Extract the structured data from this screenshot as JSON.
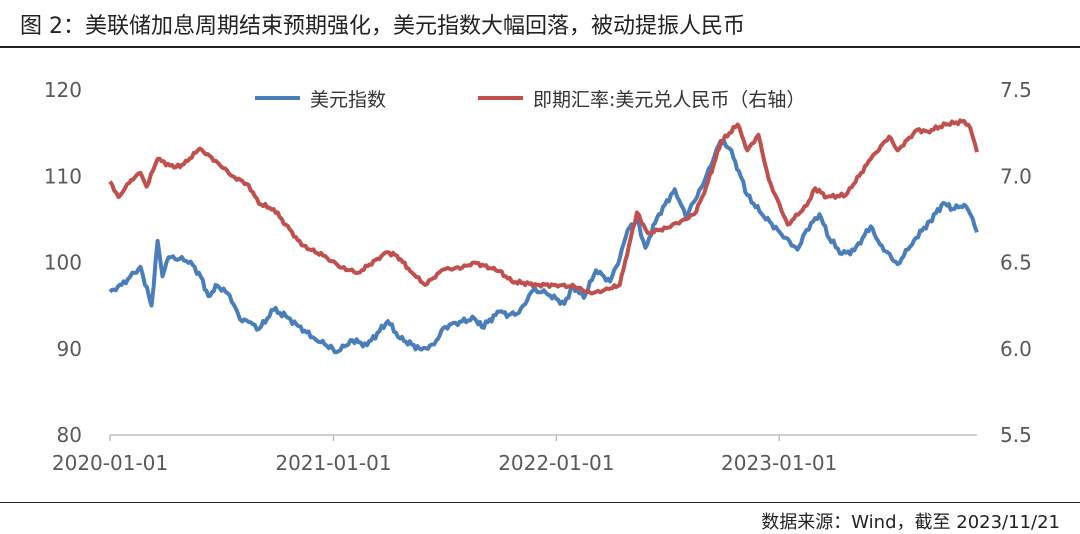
{
  "header": {
    "title": "图 2：美联储加息周期结束预期强化，美元指数大幅回落，被动提振人民币"
  },
  "footer": {
    "source": "数据来源：Wind，截至 2023/11/21"
  },
  "chart_data": {
    "type": "line",
    "x_ticks": [
      "2020-01-01",
      "2021-01-01",
      "2022-01-01",
      "2023-01-01"
    ],
    "x_range": [
      "2020-01-01",
      "2023-11-21"
    ],
    "y_left": {
      "ticks": [
        "80",
        "90",
        "100",
        "110",
        "120"
      ],
      "range": [
        80,
        120
      ]
    },
    "y_right": {
      "ticks": [
        "5.5",
        "6.0",
        "6.5",
        "7.0",
        "7.5"
      ],
      "range": [
        5.5,
        7.5
      ]
    },
    "legend_position": "top",
    "grid": false,
    "series": [
      {
        "name": "美元指数",
        "axis": "left",
        "color": "#4a7ebb",
        "points": [
          [
            "2020-01-01",
            96.6
          ],
          [
            "2020-01-20",
            97.4
          ],
          [
            "2020-02-10",
            98.8
          ],
          [
            "2020-02-20",
            99.5
          ],
          [
            "2020-03-09",
            95.0
          ],
          [
            "2020-03-19",
            102.5
          ],
          [
            "2020-03-27",
            98.4
          ],
          [
            "2020-04-06",
            100.6
          ],
          [
            "2020-04-24",
            100.4
          ],
          [
            "2020-05-12",
            100.1
          ],
          [
            "2020-05-29",
            98.3
          ],
          [
            "2020-06-10",
            96.1
          ],
          [
            "2020-06-25",
            97.3
          ],
          [
            "2020-07-15",
            96.2
          ],
          [
            "2020-08-01",
            93.4
          ],
          [
            "2020-08-15",
            93.1
          ],
          [
            "2020-09-01",
            92.3
          ],
          [
            "2020-09-25",
            94.5
          ],
          [
            "2020-10-15",
            93.8
          ],
          [
            "2020-11-05",
            92.6
          ],
          [
            "2020-12-01",
            91.2
          ],
          [
            "2020-12-31",
            90.0
          ],
          [
            "2021-01-06",
            89.6
          ],
          [
            "2021-02-01",
            91.0
          ],
          [
            "2021-02-25",
            90.4
          ],
          [
            "2021-03-31",
            93.2
          ],
          [
            "2021-04-20",
            91.2
          ],
          [
            "2021-05-25",
            89.9
          ],
          [
            "2021-06-15",
            90.5
          ],
          [
            "2021-06-30",
            92.4
          ],
          [
            "2021-07-20",
            93.0
          ],
          [
            "2021-08-20",
            93.5
          ],
          [
            "2021-09-01",
            92.5
          ],
          [
            "2021-09-30",
            94.3
          ],
          [
            "2021-10-15",
            93.9
          ],
          [
            "2021-11-01",
            94.2
          ],
          [
            "2021-11-24",
            96.8
          ],
          [
            "2021-12-15",
            96.5
          ],
          [
            "2022-01-14",
            95.2
          ],
          [
            "2022-01-28",
            97.3
          ],
          [
            "2022-02-15",
            95.9
          ],
          [
            "2022-03-07",
            99.1
          ],
          [
            "2022-03-30",
            97.8
          ],
          [
            "2022-04-15",
            100.5
          ],
          [
            "2022-04-28",
            103.8
          ],
          [
            "2022-05-13",
            104.9
          ],
          [
            "2022-05-27",
            101.7
          ],
          [
            "2022-06-15",
            105.2
          ],
          [
            "2022-07-14",
            108.5
          ],
          [
            "2022-08-01",
            105.3
          ],
          [
            "2022-08-29",
            109.0
          ],
          [
            "2022-09-27",
            114.1
          ],
          [
            "2022-10-12",
            113.2
          ],
          [
            "2022-10-27",
            110.6
          ],
          [
            "2022-11-10",
            107.8
          ],
          [
            "2022-11-30",
            105.9
          ],
          [
            "2023-01-02",
            103.5
          ],
          [
            "2023-01-31",
            101.5
          ],
          [
            "2023-02-15",
            103.8
          ],
          [
            "2023-03-08",
            105.6
          ],
          [
            "2023-03-24",
            102.8
          ],
          [
            "2023-04-14",
            101.0
          ],
          [
            "2023-05-04",
            101.4
          ],
          [
            "2023-05-31",
            104.2
          ],
          [
            "2023-06-15",
            102.1
          ],
          [
            "2023-07-14",
            99.8
          ],
          [
            "2023-08-10",
            102.6
          ],
          [
            "2023-09-05",
            104.8
          ],
          [
            "2023-09-27",
            106.9
          ],
          [
            "2023-10-12",
            106.2
          ],
          [
            "2023-10-31",
            106.7
          ],
          [
            "2023-11-10",
            105.6
          ],
          [
            "2023-11-21",
            103.5
          ]
        ]
      },
      {
        "name": "即期汇率:美元兑人民币（右轴）",
        "axis": "right",
        "color": "#c0504d",
        "points": [
          [
            "2020-01-01",
            6.97
          ],
          [
            "2020-01-15",
            6.88
          ],
          [
            "2020-02-05",
            6.98
          ],
          [
            "2020-02-20",
            7.02
          ],
          [
            "2020-03-01",
            6.94
          ],
          [
            "2020-03-19",
            7.1
          ],
          [
            "2020-04-15",
            7.05
          ],
          [
            "2020-05-01",
            7.07
          ],
          [
            "2020-05-27",
            7.16
          ],
          [
            "2020-06-25",
            7.08
          ],
          [
            "2020-07-20",
            7.0
          ],
          [
            "2020-08-15",
            6.95
          ],
          [
            "2020-09-01",
            6.84
          ],
          [
            "2020-09-25",
            6.81
          ],
          [
            "2020-10-15",
            6.72
          ],
          [
            "2020-11-10",
            6.6
          ],
          [
            "2020-12-15",
            6.54
          ],
          [
            "2021-01-15",
            6.47
          ],
          [
            "2021-02-10",
            6.44
          ],
          [
            "2021-03-30",
            6.56
          ],
          [
            "2021-04-15",
            6.54
          ],
          [
            "2021-05-10",
            6.44
          ],
          [
            "2021-05-31",
            6.37
          ],
          [
            "2021-06-30",
            6.46
          ],
          [
            "2021-07-31",
            6.47
          ],
          [
            "2021-08-20",
            6.5
          ],
          [
            "2021-09-30",
            6.45
          ],
          [
            "2021-10-20",
            6.39
          ],
          [
            "2021-11-30",
            6.37
          ],
          [
            "2021-12-31",
            6.37
          ],
          [
            "2022-01-31",
            6.36
          ],
          [
            "2022-02-28",
            6.32
          ],
          [
            "2022-03-31",
            6.35
          ],
          [
            "2022-04-15",
            6.37
          ],
          [
            "2022-04-30",
            6.6
          ],
          [
            "2022-05-13",
            6.79
          ],
          [
            "2022-05-31",
            6.67
          ],
          [
            "2022-06-30",
            6.7
          ],
          [
            "2022-07-31",
            6.75
          ],
          [
            "2022-08-15",
            6.78
          ],
          [
            "2022-08-31",
            6.9
          ],
          [
            "2022-09-28",
            7.2
          ],
          [
            "2022-10-25",
            7.3
          ],
          [
            "2022-11-10",
            7.15
          ],
          [
            "2022-11-28",
            7.24
          ],
          [
            "2022-12-15",
            6.98
          ],
          [
            "2023-01-15",
            6.72
          ],
          [
            "2023-02-15",
            6.83
          ],
          [
            "2023-03-01",
            6.93
          ],
          [
            "2023-03-20",
            6.88
          ],
          [
            "2023-04-20",
            6.89
          ],
          [
            "2023-05-31",
            7.1
          ],
          [
            "2023-06-30",
            7.23
          ],
          [
            "2023-07-14",
            7.15
          ],
          [
            "2023-08-15",
            7.27
          ],
          [
            "2023-09-01",
            7.26
          ],
          [
            "2023-10-01",
            7.3
          ],
          [
            "2023-10-31",
            7.32
          ],
          [
            "2023-11-10",
            7.28
          ],
          [
            "2023-11-21",
            7.14
          ]
        ]
      }
    ]
  }
}
